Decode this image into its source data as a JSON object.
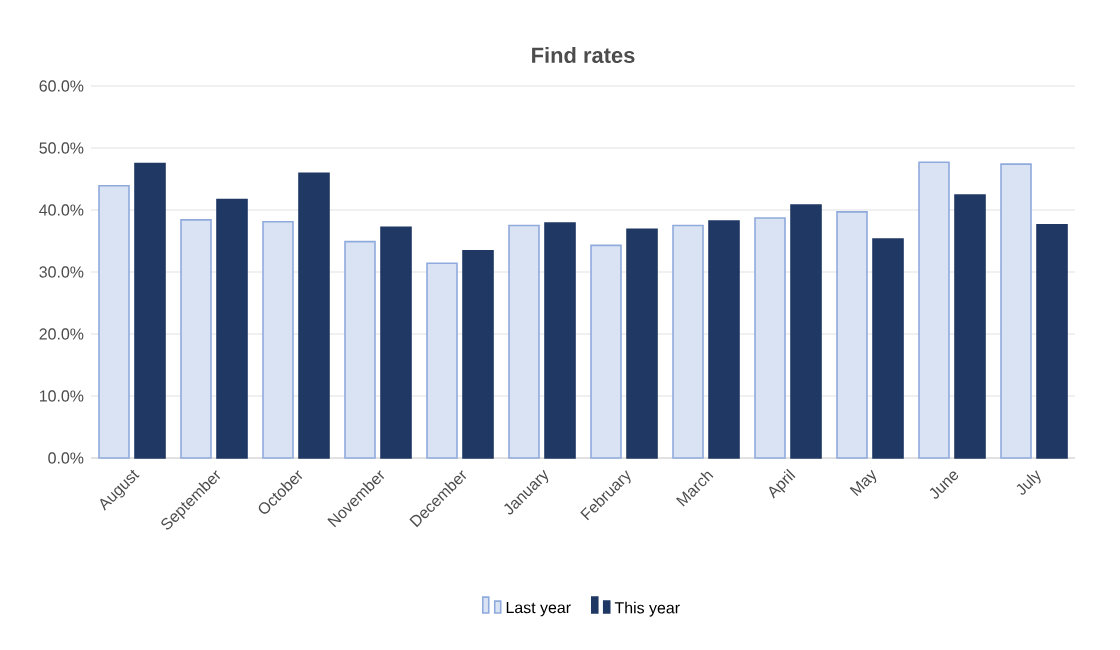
{
  "chart_data": {
    "type": "bar",
    "title": "Find rates",
    "categories": [
      "August",
      "September",
      "October",
      "November",
      "December",
      "January",
      "February",
      "March",
      "April",
      "May",
      "June",
      "July"
    ],
    "series": [
      {
        "name": "Last year",
        "color": "#dae3f3",
        "values": [
          43.9,
          38.4,
          38.1,
          34.9,
          31.4,
          37.5,
          34.3,
          37.5,
          38.7,
          39.7,
          47.7,
          47.4
        ]
      },
      {
        "name": "This year",
        "color": "#203864",
        "values": [
          47.5,
          41.7,
          45.9,
          37.2,
          33.4,
          37.9,
          36.9,
          38.2,
          40.8,
          35.3,
          42.4,
          37.6
        ]
      }
    ],
    "ylim": [
      0,
      60
    ],
    "yticks": [
      {
        "value": 0,
        "label": "0.0%"
      },
      {
        "value": 10,
        "label": "10.0%"
      },
      {
        "value": 20,
        "label": "20.0%"
      },
      {
        "value": 30,
        "label": "30.0%"
      },
      {
        "value": 40,
        "label": "40.0%"
      },
      {
        "value": 50,
        "label": "50.0%"
      },
      {
        "value": 60,
        "label": "60.0%"
      }
    ],
    "grid": "y",
    "legend": "bottom"
  }
}
